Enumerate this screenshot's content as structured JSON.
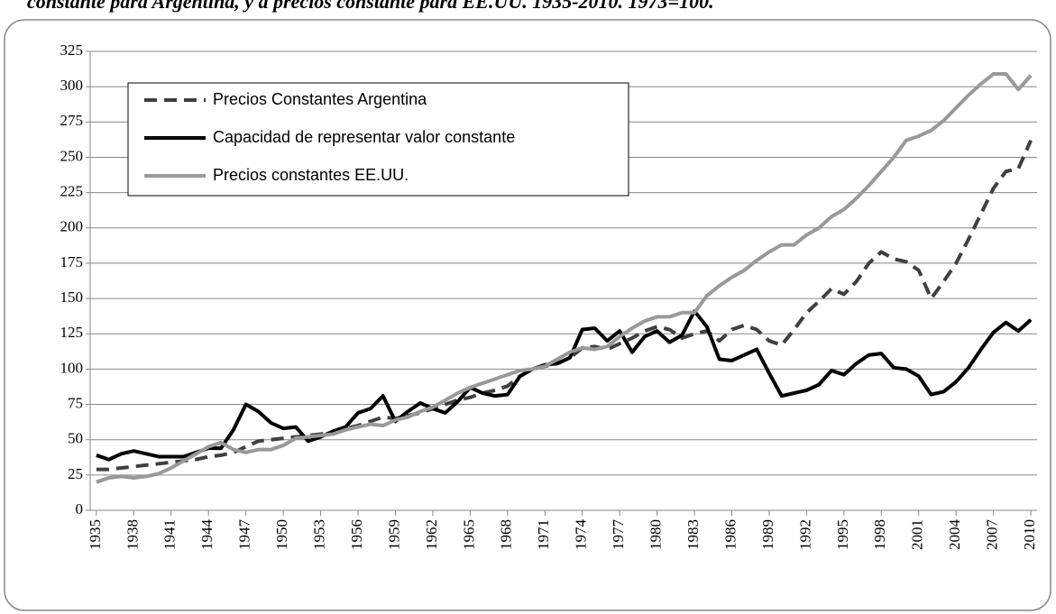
{
  "chart_data": {
    "type": "line",
    "title": "constante para Argentina, y a precios constante para EE.UU. 1935-2010. 1973=100.",
    "x": [
      1935,
      1936,
      1937,
      1938,
      1939,
      1940,
      1941,
      1942,
      1943,
      1944,
      1945,
      1946,
      1947,
      1948,
      1949,
      1950,
      1951,
      1952,
      1953,
      1954,
      1955,
      1956,
      1957,
      1958,
      1959,
      1960,
      1961,
      1962,
      1963,
      1964,
      1965,
      1966,
      1967,
      1968,
      1969,
      1970,
      1971,
      1972,
      1973,
      1974,
      1975,
      1976,
      1977,
      1978,
      1979,
      1980,
      1981,
      1982,
      1983,
      1984,
      1985,
      1986,
      1987,
      1988,
      1989,
      1990,
      1991,
      1992,
      1993,
      1994,
      1995,
      1996,
      1997,
      1998,
      1999,
      2000,
      2001,
      2002,
      2003,
      2004,
      2005,
      2006,
      2007,
      2008,
      2009,
      2010
    ],
    "xlim": [
      1934.5,
      2010.5
    ],
    "xticks": [
      1935,
      1938,
      1941,
      1944,
      1947,
      1950,
      1953,
      1956,
      1959,
      1962,
      1965,
      1968,
      1971,
      1974,
      1977,
      1980,
      1983,
      1986,
      1989,
      1992,
      1995,
      1998,
      2001,
      2004,
      2007,
      2010
    ],
    "ylim": [
      0,
      325
    ],
    "yticks": [
      0,
      25,
      50,
      75,
      100,
      125,
      150,
      175,
      200,
      225,
      250,
      275,
      300,
      325
    ],
    "grid": true,
    "legend": "upper left",
    "series": [
      {
        "name": "Precios Constantes Argentina",
        "color": "#404040",
        "dashed": true,
        "values": [
          29,
          29,
          30,
          31,
          32,
          33,
          34,
          35,
          36,
          38,
          39,
          41,
          45,
          49,
          50,
          51,
          52,
          53,
          54,
          55,
          58,
          60,
          63,
          66,
          65,
          67,
          69,
          72,
          75,
          78,
          80,
          83,
          85,
          88,
          95,
          100,
          102,
          104,
          108,
          115,
          116,
          114,
          118,
          122,
          127,
          130,
          128,
          122,
          125,
          127,
          120,
          128,
          131,
          128,
          120,
          117,
          128,
          140,
          148,
          157,
          153,
          162,
          175,
          183,
          178,
          176,
          170,
          150,
          162,
          175,
          192,
          210,
          228,
          240,
          242,
          262
        ]
      },
      {
        "name": "Capacidad de representar  valor constante",
        "color": "#000000",
        "dashed": false,
        "values": [
          39,
          36,
          40,
          42,
          40,
          38,
          38,
          38,
          41,
          44,
          44,
          57,
          75,
          70,
          62,
          58,
          59,
          49,
          52,
          56,
          59,
          69,
          72,
          81,
          63,
          70,
          76,
          72,
          69,
          77,
          87,
          83,
          81,
          82,
          95,
          100,
          103,
          104,
          108,
          128,
          129,
          120,
          127,
          112,
          123,
          127,
          119,
          124,
          141,
          130,
          107,
          106,
          110,
          114,
          97,
          81,
          83,
          85,
          89,
          99,
          96,
          104,
          110,
          111,
          101,
          100,
          95,
          82,
          84,
          91,
          101,
          114,
          126,
          133,
          127,
          135
        ]
      },
      {
        "name": "Precios constantes EE.UU.",
        "color": "#999999",
        "dashed": false,
        "values": [
          20,
          23,
          24,
          23,
          24,
          26,
          30,
          35,
          40,
          45,
          48,
          43,
          41,
          43,
          43,
          46,
          51,
          52,
          53,
          54,
          57,
          59,
          61,
          60,
          64,
          66,
          70,
          73,
          78,
          83,
          87,
          90,
          93,
          96,
          99,
          100,
          102,
          107,
          112,
          115,
          114,
          116,
          123,
          129,
          134,
          137,
          137,
          140,
          140,
          152,
          159,
          165,
          170,
          177,
          183,
          188,
          188,
          195,
          200,
          208,
          213,
          221,
          230,
          240,
          250,
          262,
          265,
          269,
          276,
          285,
          294,
          302,
          309,
          309,
          298,
          308
        ]
      }
    ]
  }
}
